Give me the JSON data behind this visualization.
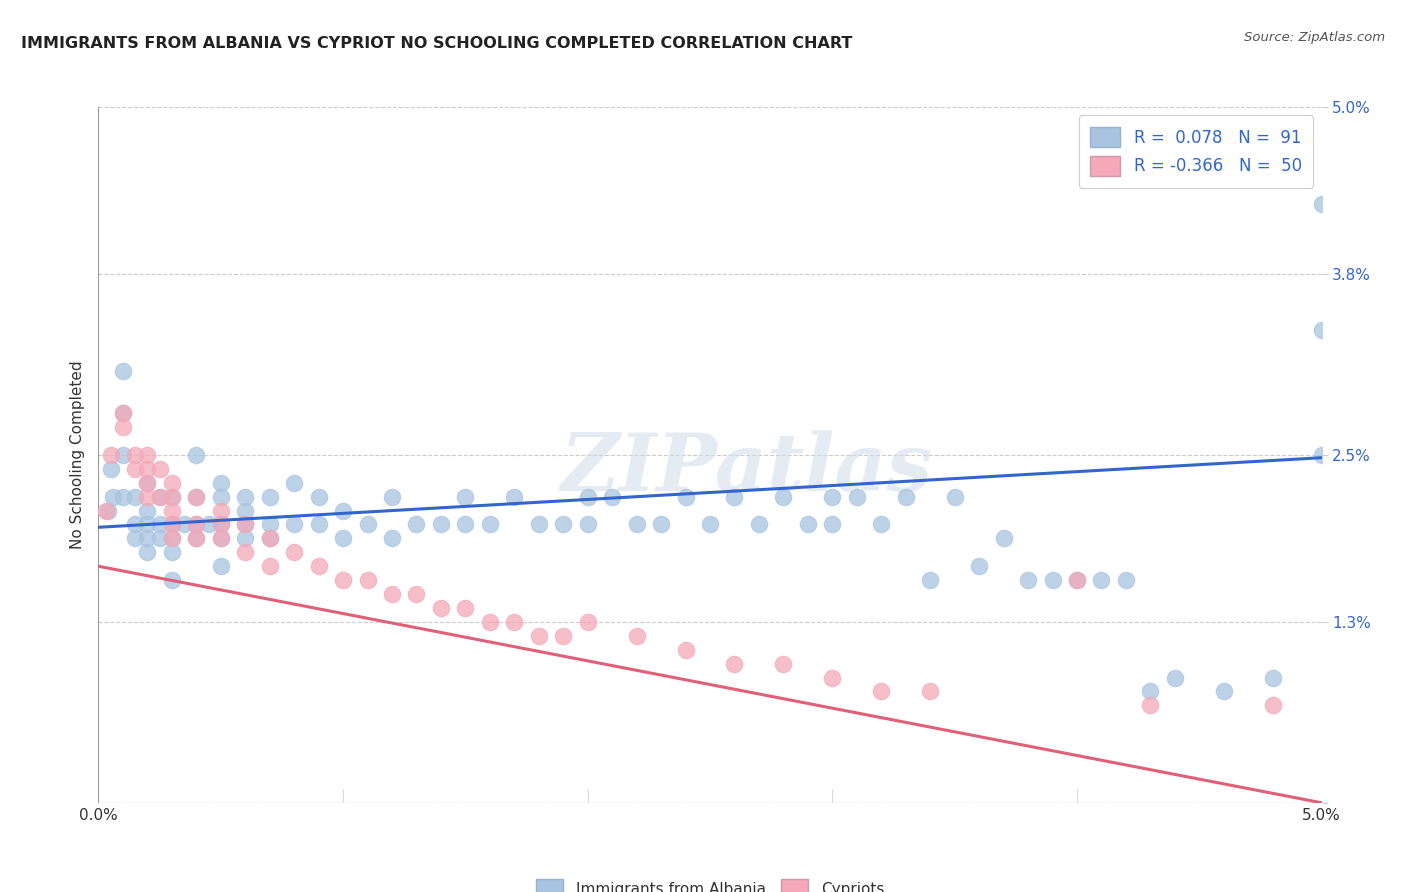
{
  "title": "IMMIGRANTS FROM ALBANIA VS CYPRIOT NO SCHOOLING COMPLETED CORRELATION CHART",
  "source": "Source: ZipAtlas.com",
  "ylabel": "No Schooling Completed",
  "xlim": [
    0.0,
    0.05
  ],
  "ylim": [
    0.0,
    0.05
  ],
  "xtick_pos": [
    0.0,
    0.01,
    0.02,
    0.03,
    0.04,
    0.05
  ],
  "xticklabels": [
    "0.0%",
    "",
    "",
    "",
    "",
    "5.0%"
  ],
  "ytick_pos": [
    0.0,
    0.013,
    0.025,
    0.038,
    0.05
  ],
  "yticklabels": [
    "",
    "1.3%",
    "2.5%",
    "3.8%",
    "5.0%"
  ],
  "color_blue": "#a8c4e0",
  "color_pink": "#f4a8b8",
  "line_color_blue": "#3366cc",
  "line_color_pink": "#e0607a",
  "legend_color": "#3366cc",
  "watermark": "ZIPatlas",
  "background_color": "#ffffff",
  "grid_color": "#cccccc",
  "blue_line_x": [
    0.0,
    0.05
  ],
  "blue_line_y": [
    0.0198,
    0.0248
  ],
  "pink_line_x": [
    0.0,
    0.05
  ],
  "pink_line_y": [
    0.017,
    0.0
  ],
  "albania_x": [
    0.0004,
    0.0005,
    0.0006,
    0.001,
    0.001,
    0.001,
    0.001,
    0.0015,
    0.0015,
    0.0015,
    0.002,
    0.002,
    0.002,
    0.002,
    0.002,
    0.0025,
    0.0025,
    0.0025,
    0.003,
    0.003,
    0.003,
    0.003,
    0.003,
    0.0035,
    0.004,
    0.004,
    0.004,
    0.004,
    0.0045,
    0.005,
    0.005,
    0.005,
    0.005,
    0.005,
    0.006,
    0.006,
    0.006,
    0.006,
    0.007,
    0.007,
    0.007,
    0.008,
    0.008,
    0.009,
    0.009,
    0.01,
    0.01,
    0.011,
    0.012,
    0.012,
    0.013,
    0.014,
    0.015,
    0.015,
    0.016,
    0.017,
    0.018,
    0.019,
    0.02,
    0.02,
    0.021,
    0.022,
    0.023,
    0.024,
    0.025,
    0.026,
    0.027,
    0.028,
    0.029,
    0.03,
    0.03,
    0.031,
    0.032,
    0.033,
    0.034,
    0.035,
    0.036,
    0.037,
    0.038,
    0.039,
    0.04,
    0.041,
    0.042,
    0.043,
    0.044,
    0.046,
    0.048,
    0.05,
    0.05,
    0.05
  ],
  "albania_y": [
    0.021,
    0.024,
    0.022,
    0.031,
    0.028,
    0.025,
    0.022,
    0.022,
    0.02,
    0.019,
    0.023,
    0.021,
    0.02,
    0.019,
    0.018,
    0.022,
    0.02,
    0.019,
    0.022,
    0.02,
    0.019,
    0.018,
    0.016,
    0.02,
    0.025,
    0.022,
    0.02,
    0.019,
    0.02,
    0.023,
    0.022,
    0.02,
    0.019,
    0.017,
    0.022,
    0.021,
    0.02,
    0.019,
    0.022,
    0.02,
    0.019,
    0.023,
    0.02,
    0.022,
    0.02,
    0.021,
    0.019,
    0.02,
    0.022,
    0.019,
    0.02,
    0.02,
    0.022,
    0.02,
    0.02,
    0.022,
    0.02,
    0.02,
    0.022,
    0.02,
    0.022,
    0.02,
    0.02,
    0.022,
    0.02,
    0.022,
    0.02,
    0.022,
    0.02,
    0.022,
    0.02,
    0.022,
    0.02,
    0.022,
    0.016,
    0.022,
    0.017,
    0.019,
    0.016,
    0.016,
    0.016,
    0.016,
    0.016,
    0.008,
    0.009,
    0.008,
    0.009,
    0.025,
    0.034,
    0.043
  ],
  "cypriot_x": [
    0.0003,
    0.0005,
    0.001,
    0.001,
    0.0015,
    0.0015,
    0.002,
    0.002,
    0.002,
    0.002,
    0.0025,
    0.0025,
    0.003,
    0.003,
    0.003,
    0.003,
    0.003,
    0.004,
    0.004,
    0.004,
    0.005,
    0.005,
    0.005,
    0.006,
    0.006,
    0.007,
    0.007,
    0.008,
    0.009,
    0.01,
    0.011,
    0.012,
    0.013,
    0.014,
    0.015,
    0.016,
    0.017,
    0.018,
    0.019,
    0.02,
    0.022,
    0.024,
    0.026,
    0.028,
    0.03,
    0.032,
    0.034,
    0.04,
    0.043,
    0.048
  ],
  "cypriot_y": [
    0.021,
    0.025,
    0.028,
    0.027,
    0.025,
    0.024,
    0.025,
    0.024,
    0.023,
    0.022,
    0.024,
    0.022,
    0.023,
    0.022,
    0.021,
    0.02,
    0.019,
    0.022,
    0.02,
    0.019,
    0.021,
    0.02,
    0.019,
    0.02,
    0.018,
    0.019,
    0.017,
    0.018,
    0.017,
    0.016,
    0.016,
    0.015,
    0.015,
    0.014,
    0.014,
    0.013,
    0.013,
    0.012,
    0.012,
    0.013,
    0.012,
    0.011,
    0.01,
    0.01,
    0.009,
    0.008,
    0.008,
    0.016,
    0.007,
    0.007
  ]
}
